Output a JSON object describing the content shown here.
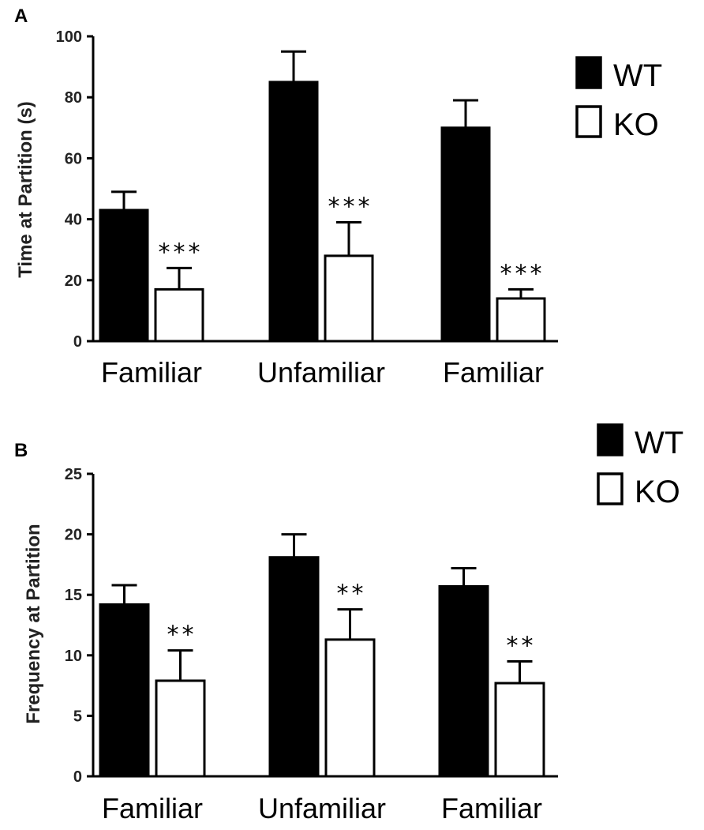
{
  "chart_data": [
    {
      "panel": "A",
      "type": "bar",
      "title": "",
      "ylabel": "Time at Partition (s)",
      "xlabel": "",
      "ylim": [
        0,
        100
      ],
      "yticks": [
        "0",
        "20",
        "40",
        "60",
        "80",
        "100"
      ],
      "categories": [
        "Familiar",
        "Unfamiliar",
        "Familiar"
      ],
      "series": [
        {
          "name": "WT",
          "color": "#000000",
          "values": [
            43,
            85,
            70
          ],
          "errors": [
            6,
            10,
            9
          ]
        },
        {
          "name": "KO",
          "color": "#ffffff",
          "values": [
            17,
            28,
            14
          ],
          "errors": [
            7,
            11,
            3
          ]
        }
      ],
      "annotations": [
        "***",
        "***",
        "***"
      ],
      "legend": [
        "WT",
        "KO"
      ]
    },
    {
      "panel": "B",
      "type": "bar",
      "title": "",
      "ylabel": "Frequency at Partition",
      "xlabel": "",
      "ylim": [
        0,
        25
      ],
      "yticks": [
        "0",
        "5",
        "10",
        "15",
        "20",
        "25"
      ],
      "categories": [
        "Familiar",
        "Unfamiliar",
        "Familiar"
      ],
      "series": [
        {
          "name": "WT",
          "color": "#000000",
          "values": [
            14.2,
            18.1,
            15.7
          ],
          "errors": [
            1.6,
            1.9,
            1.5
          ]
        },
        {
          "name": "KO",
          "color": "#ffffff",
          "values": [
            7.9,
            11.3,
            7.7
          ],
          "errors": [
            2.5,
            2.5,
            1.8
          ]
        }
      ],
      "annotations": [
        "**",
        "**",
        "**"
      ],
      "legend": [
        "WT",
        "KO"
      ]
    }
  ]
}
